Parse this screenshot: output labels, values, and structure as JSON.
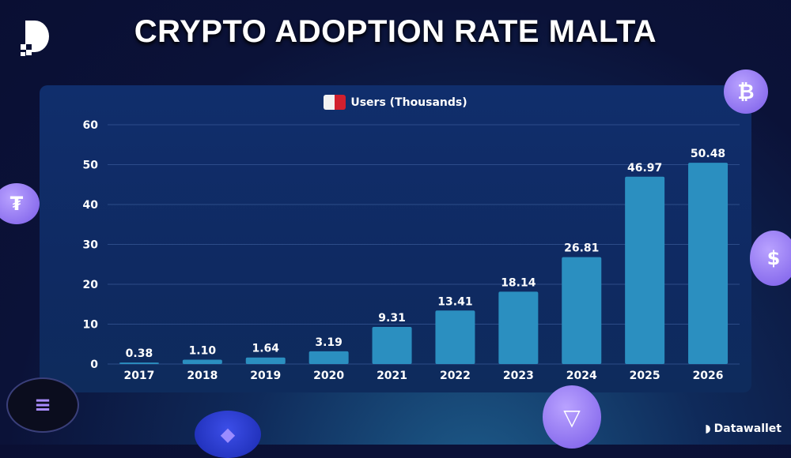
{
  "header": {
    "title": "CRYPTO ADOPTION RATE MALTA"
  },
  "brand": {
    "name": "Datawallet"
  },
  "colors": {
    "bar": "#2b8fc0",
    "background": "#0a0f33",
    "card": "#0f2a62",
    "flag_white": "#f2f2f2",
    "flag_red": "#d2202e"
  },
  "decorations": [
    "bitcoin-coin-icon",
    "tether-coin-icon",
    "usdc-coin-icon",
    "solana-coin-icon",
    "ethereum-coin-icon",
    "tron-coin-icon"
  ],
  "chart_data": {
    "type": "bar",
    "title": "",
    "legend": "Users (Thousands)",
    "legend_placement": "top-center",
    "categories": [
      "2017",
      "2018",
      "2019",
      "2020",
      "2021",
      "2022",
      "2023",
      "2024",
      "2025",
      "2026"
    ],
    "values": [
      0.38,
      1.1,
      1.64,
      3.19,
      9.31,
      13.41,
      18.14,
      26.81,
      46.97,
      50.48
    ],
    "data_labels": [
      "0.38",
      "1.10",
      "1.64",
      "3.19",
      "9.31",
      "13.41",
      "18.14",
      "26.81",
      "46.97",
      "50.48"
    ],
    "yticks": [
      0,
      10,
      20,
      30,
      40,
      50,
      60
    ],
    "ylim": [
      0,
      60
    ],
    "grid": true,
    "xlabel": "",
    "ylabel": ""
  }
}
